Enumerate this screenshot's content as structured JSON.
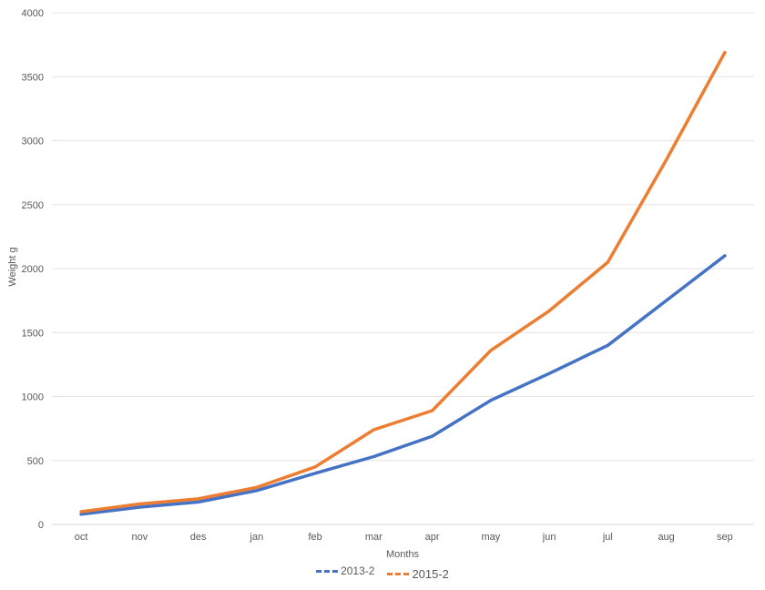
{
  "chart_data": {
    "type": "line",
    "title": "",
    "xlabel": "Months",
    "ylabel": "Weight g",
    "categories": [
      "oct",
      "nov",
      "des",
      "jan",
      "feb",
      "mar",
      "apr",
      "may",
      "jun",
      "jul",
      "aug",
      "sep"
    ],
    "series": [
      {
        "name": "2013-2",
        "color": "#4472C4",
        "values": [
          80,
          135,
          175,
          265,
          400,
          530,
          690,
          970,
          1180,
          1400,
          1750,
          2100
        ]
      },
      {
        "name": "2015-2",
        "color": "#ED7D31",
        "values": [
          100,
          160,
          200,
          290,
          450,
          740,
          890,
          1360,
          1670,
          2050,
          2850,
          3690
        ]
      }
    ],
    "ylim": [
      0,
      4000
    ],
    "ytick_step": 500,
    "yticks": [
      0,
      500,
      1000,
      1500,
      2000,
      2500,
      3000,
      3500,
      4000
    ],
    "grid": "horizontal",
    "legend_position": "bottom-center",
    "text_color": "#595959",
    "grid_color": "#E4E4E4",
    "zero_line_color": "#D6D6D6"
  }
}
